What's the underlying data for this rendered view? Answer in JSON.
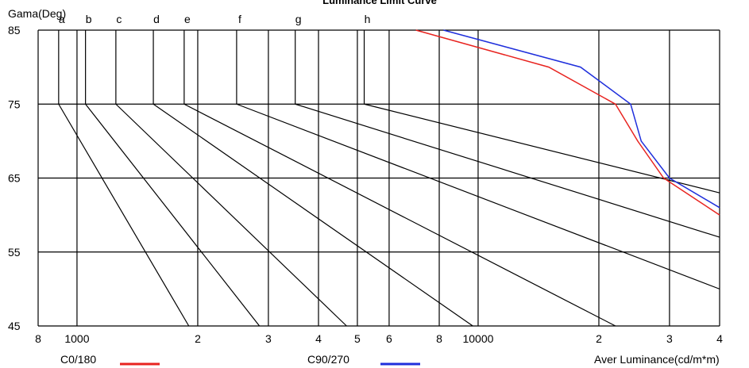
{
  "chart_data": {
    "type": "line",
    "title": "Luminance Limit Curve",
    "ylabel": "Gama(Deg)",
    "xlabel": "Aver Luminance(cd/m*m)",
    "x_scale": "log",
    "xlim": [
      800,
      40000
    ],
    "ylim": [
      45,
      85
    ],
    "grid": true,
    "x_tick_values": [
      800,
      1000,
      2000,
      3000,
      4000,
      5000,
      6000,
      8000,
      10000,
      20000,
      30000,
      40000
    ],
    "x_tick_labels": [
      "8",
      "1000",
      "2",
      "3",
      "4",
      "5",
      "6",
      "8",
      "10000",
      "2",
      "3",
      "4"
    ],
    "y_ticks": [
      85,
      75,
      65,
      55,
      45
    ],
    "limit_curves": [
      {
        "label": "a",
        "x_at_75": 900,
        "x_at_45": 1900
      },
      {
        "label": "b",
        "x_at_75": 1050,
        "x_at_45": 2850
      },
      {
        "label": "c",
        "x_at_75": 1250,
        "x_at_45": 4700
      },
      {
        "label": "d",
        "x_at_75": 1550,
        "x_at_45": 9700
      },
      {
        "label": "e",
        "x_at_75": 1850,
        "x_at_45": 22000
      },
      {
        "label": "f",
        "x_at_75": 2500,
        "x_at_45": 40000,
        "y_at_end": 50
      },
      {
        "label": "g",
        "x_at_75": 3500,
        "x_at_45": 40000,
        "y_at_end": 57
      },
      {
        "label": "h",
        "x_at_75": 5200,
        "x_at_45": 40000,
        "y_at_end": 63
      }
    ],
    "series": [
      {
        "name": "C0/180",
        "color": "#e8231f",
        "x": [
          7000,
          15000,
          22000,
          25000,
          29000,
          40000
        ],
        "y": [
          85,
          80,
          75,
          70,
          65,
          60
        ]
      },
      {
        "name": "C90/270",
        "color": "#1f2fdc",
        "x": [
          8200,
          18000,
          24000,
          25500,
          30000,
          40000
        ],
        "y": [
          85,
          80,
          75,
          70,
          65,
          61
        ]
      }
    ],
    "legend_placement": "bottom"
  }
}
